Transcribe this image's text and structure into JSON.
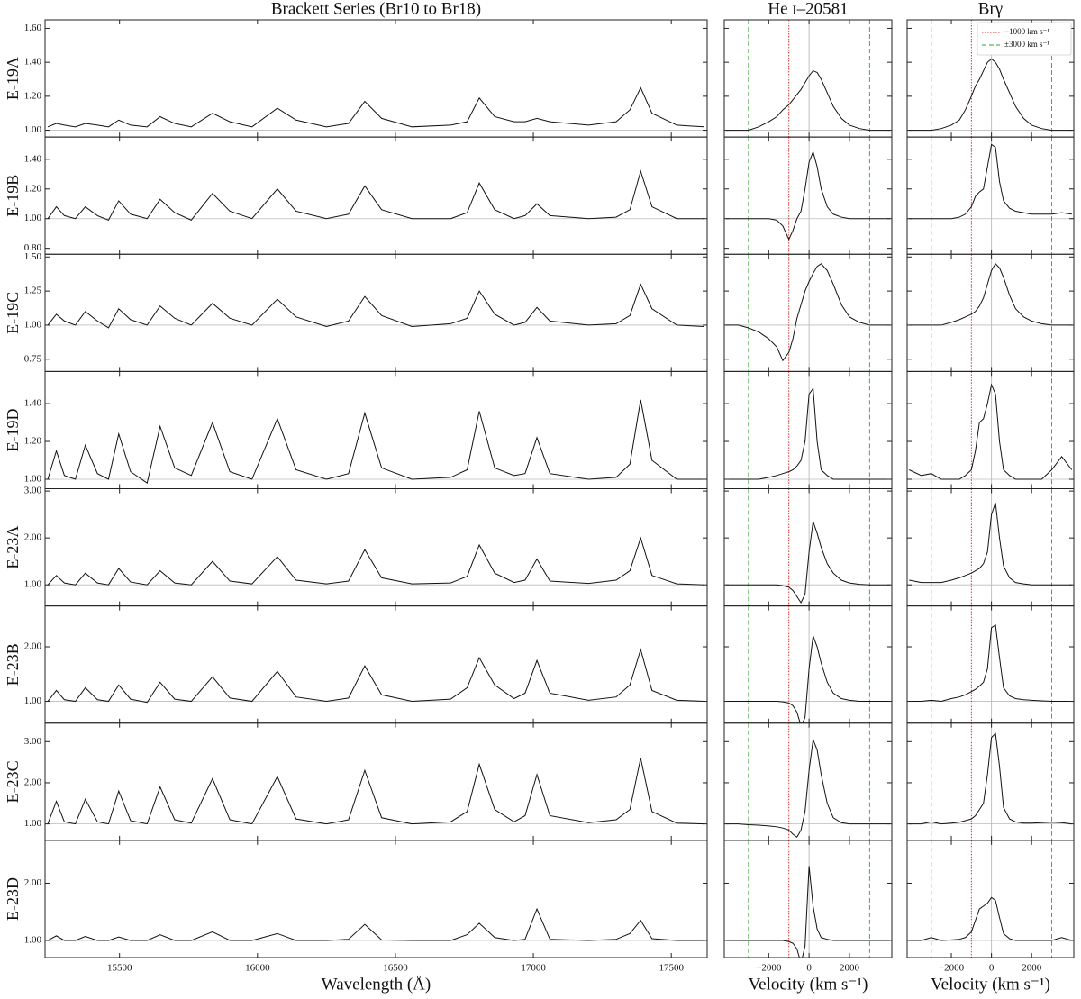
{
  "chart_data": {
    "type": "line",
    "line_color": "#111111",
    "continuum": {
      "value": 1,
      "color": "#bbbbbb"
    },
    "reference_lines": [
      {
        "label": "−1000 km s⁻¹",
        "color": "#e41a1c",
        "style": "dotted",
        "values": [
          -1000
        ],
        "columns": [
          1,
          2
        ]
      },
      {
        "label": "±3000 km s⁻¹",
        "color": "#33a02c",
        "style": "dashed",
        "values": [
          -3000,
          3000
        ],
        "columns": [
          1,
          2
        ]
      },
      {
        "color": "#bbbbbb",
        "style": "solid",
        "values": [
          0
        ],
        "columns": [
          1,
          2
        ]
      }
    ],
    "legend": {
      "corner": "upper right",
      "column": 2,
      "row": 0
    },
    "columns": [
      {
        "title": "Brackett Series (Br10 to Br18)",
        "xlabel": "Wavelength (Å)",
        "xlim": [
          15230,
          17630
        ],
        "xticks": [
          15500,
          16000,
          16500,
          17000,
          17500
        ],
        "x": [
          15240,
          15271,
          15300,
          15340,
          15376,
          15420,
          15460,
          15497,
          15540,
          15600,
          15647,
          15700,
          15760,
          15837,
          15900,
          15980,
          16072,
          16140,
          16250,
          16330,
          16389,
          16450,
          16560,
          16700,
          16760,
          16804,
          16860,
          16930,
          16970,
          17013,
          17060,
          17200,
          17300,
          17350,
          17389,
          17430,
          17520,
          17620
        ]
      },
      {
        "title": "He ɪ–20581",
        "xlabel": "Velocity (km s⁻¹)",
        "xlim": [
          -4200,
          4100
        ],
        "xticks": [
          {
            "value": -2000,
            "label": "−2000"
          },
          0,
          2000
        ],
        "x": [
          -4100,
          -3500,
          -3000,
          -2500,
          -2000,
          -1600,
          -1300,
          -1000,
          -800,
          -600,
          -400,
          -200,
          0,
          200,
          400,
          600,
          900,
          1200,
          1600,
          2000,
          2500,
          3000,
          3500,
          4000
        ]
      },
      {
        "title": "Brγ",
        "xlabel": "Velocity (km s⁻¹)",
        "xlim": [
          -4200,
          4100
        ],
        "xticks": [
          {
            "value": -2000,
            "label": "−2000"
          },
          0,
          2000
        ],
        "x": [
          -4100,
          -3500,
          -3000,
          -2500,
          -2000,
          -1600,
          -1300,
          -1000,
          -800,
          -600,
          -400,
          -200,
          0,
          200,
          400,
          600,
          900,
          1200,
          1600,
          2000,
          2500,
          3000,
          3500,
          4000
        ]
      }
    ],
    "rows": [
      {
        "label": "E-19A",
        "ylim": [
          0.96,
          1.65
        ],
        "yticks": [
          {
            "value": 1,
            "label": "1.00"
          },
          {
            "value": 1.2,
            "label": "1.20"
          },
          {
            "value": 1.4,
            "label": "1.40"
          },
          {
            "value": 1.6,
            "label": "1.60"
          }
        ],
        "values": [
          [
            1.02,
            1.04,
            1.03,
            1.02,
            1.04,
            1.03,
            1.02,
            1.06,
            1.03,
            1.02,
            1.08,
            1.04,
            1.02,
            1.1,
            1.05,
            1.02,
            1.13,
            1.06,
            1.02,
            1.04,
            1.17,
            1.07,
            1.02,
            1.03,
            1.05,
            1.19,
            1.08,
            1.05,
            1.05,
            1.07,
            1.05,
            1.03,
            1.05,
            1.12,
            1.25,
            1.1,
            1.03,
            1.02
          ],
          [
            1.0,
            1.0,
            1.0,
            1.02,
            1.05,
            1.08,
            1.12,
            1.15,
            1.18,
            1.21,
            1.24,
            1.28,
            1.32,
            1.35,
            1.34,
            1.3,
            1.22,
            1.14,
            1.07,
            1.03,
            1.01,
            1.0,
            1.0,
            1.0
          ],
          [
            1.0,
            1.0,
            1.0,
            1.01,
            1.03,
            1.06,
            1.12,
            1.2,
            1.26,
            1.3,
            1.35,
            1.4,
            1.42,
            1.4,
            1.36,
            1.3,
            1.22,
            1.14,
            1.07,
            1.03,
            1.01,
            1.0,
            1.0,
            1.0
          ]
        ]
      },
      {
        "label": "E-19B",
        "ylim": [
          0.76,
          1.55
        ],
        "yticks": [
          {
            "value": 0.8,
            "label": "0.80"
          },
          {
            "value": 1,
            "label": "1.00"
          },
          {
            "value": 1.2,
            "label": "1.20"
          },
          {
            "value": 1.4,
            "label": "1.40"
          }
        ],
        "values": [
          [
            1.0,
            1.08,
            1.02,
            1.0,
            1.08,
            1.02,
            0.99,
            1.12,
            1.03,
            1.0,
            1.13,
            1.04,
            0.99,
            1.17,
            1.05,
            1.0,
            1.2,
            1.05,
            1.0,
            1.03,
            1.22,
            1.06,
            1.0,
            1.0,
            1.04,
            1.24,
            1.06,
            1.0,
            1.02,
            1.1,
            1.02,
            1.0,
            1.01,
            1.06,
            1.32,
            1.08,
            1.0,
            1.0
          ],
          [
            1.0,
            1.0,
            1.0,
            1.0,
            1.0,
            0.99,
            0.95,
            0.86,
            0.92,
            1.0,
            1.05,
            1.2,
            1.38,
            1.45,
            1.35,
            1.2,
            1.08,
            1.03,
            1.01,
            1.0,
            1.0,
            1.0,
            1.0,
            1.0
          ],
          [
            1.0,
            1.0,
            1.0,
            1.0,
            1.0,
            1.01,
            1.03,
            1.08,
            1.15,
            1.18,
            1.2,
            1.35,
            1.5,
            1.48,
            1.25,
            1.12,
            1.07,
            1.05,
            1.04,
            1.03,
            1.03,
            1.03,
            1.04,
            1.03
          ]
        ]
      },
      {
        "label": "E-19C",
        "ylim": [
          0.66,
          1.52
        ],
        "yticks": [
          {
            "value": 0.75,
            "label": "0.75"
          },
          {
            "value": 1,
            "label": "1.00"
          },
          {
            "value": 1.25,
            "label": "1.25"
          },
          {
            "value": 1.5,
            "label": "1.50"
          }
        ],
        "values": [
          [
            1.0,
            1.08,
            1.03,
            1.0,
            1.1,
            1.03,
            0.98,
            1.12,
            1.04,
            1.0,
            1.14,
            1.05,
            1.0,
            1.16,
            1.05,
            1.0,
            1.19,
            1.06,
            0.99,
            1.03,
            1.21,
            1.07,
            0.99,
            1.01,
            1.05,
            1.25,
            1.08,
            1.0,
            1.02,
            1.13,
            1.03,
            1.0,
            1.01,
            1.07,
            1.3,
            1.12,
            1.0,
            0.99
          ],
          [
            1.0,
            1.0,
            0.98,
            0.95,
            0.9,
            0.84,
            0.74,
            0.8,
            0.9,
            1.05,
            1.15,
            1.25,
            1.32,
            1.38,
            1.43,
            1.45,
            1.4,
            1.3,
            1.15,
            1.06,
            1.02,
            1.0,
            1.0,
            1.0
          ],
          [
            1.0,
            1.0,
            1.0,
            1.0,
            1.02,
            1.04,
            1.06,
            1.08,
            1.1,
            1.14,
            1.2,
            1.3,
            1.4,
            1.45,
            1.42,
            1.35,
            1.22,
            1.12,
            1.06,
            1.03,
            1.01,
            1.0,
            1.0,
            1.0
          ]
        ]
      },
      {
        "label": "E-19D",
        "ylim": [
          0.95,
          1.57
        ],
        "yticks": [
          {
            "value": 1,
            "label": "1.00"
          },
          {
            "value": 1.2,
            "label": "1.20"
          },
          {
            "value": 1.4,
            "label": "1.40"
          }
        ],
        "values": [
          [
            1.0,
            1.15,
            1.02,
            1.0,
            1.18,
            1.03,
            1.0,
            1.24,
            1.04,
            0.98,
            1.28,
            1.06,
            1.02,
            1.3,
            1.04,
            1.0,
            1.32,
            1.05,
            1.0,
            1.03,
            1.35,
            1.06,
            1.0,
            1.01,
            1.05,
            1.36,
            1.06,
            1.02,
            1.03,
            1.22,
            1.03,
            1.0,
            1.01,
            1.08,
            1.42,
            1.1,
            1.0,
            1.0
          ],
          [
            1.0,
            1.0,
            1.0,
            1.0,
            1.01,
            1.02,
            1.03,
            1.04,
            1.05,
            1.07,
            1.1,
            1.2,
            1.45,
            1.48,
            1.2,
            1.05,
            1.02,
            1.0,
            1.0,
            1.0,
            1.0,
            1.0,
            1.0,
            1.0
          ],
          [
            1.05,
            1.02,
            1.03,
            1.0,
            1.0,
            1.0,
            1.02,
            1.05,
            1.15,
            1.3,
            1.32,
            1.4,
            1.5,
            1.45,
            1.2,
            1.05,
            1.02,
            1.0,
            1.0,
            1.0,
            1.0,
            1.05,
            1.12,
            1.05
          ]
        ]
      },
      {
        "label": "E-23A",
        "ylim": [
          0.55,
          3.05
        ],
        "yticks": [
          {
            "value": 1,
            "label": "1.00"
          },
          {
            "value": 2,
            "label": "2.00"
          },
          {
            "value": 3,
            "label": "3.00"
          }
        ],
        "values": [
          [
            1.0,
            1.2,
            1.04,
            1.0,
            1.25,
            1.04,
            1.0,
            1.35,
            1.06,
            1.0,
            1.3,
            1.04,
            1.0,
            1.5,
            1.08,
            1.02,
            1.6,
            1.1,
            1.02,
            1.08,
            1.75,
            1.15,
            1.02,
            1.04,
            1.18,
            1.85,
            1.25,
            1.05,
            1.1,
            1.55,
            1.08,
            1.03,
            1.1,
            1.3,
            2.0,
            1.2,
            1.02,
            1.0
          ],
          [
            1.0,
            1.0,
            1.0,
            1.0,
            1.0,
            1.0,
            0.98,
            0.95,
            0.88,
            0.75,
            0.62,
            0.8,
            1.7,
            2.35,
            2.1,
            1.8,
            1.45,
            1.25,
            1.1,
            1.04,
            1.01,
            1.0,
            1.0,
            1.0
          ],
          [
            1.1,
            1.05,
            1.05,
            1.05,
            1.1,
            1.15,
            1.2,
            1.25,
            1.3,
            1.35,
            1.45,
            1.7,
            2.5,
            2.75,
            2.0,
            1.4,
            1.15,
            1.05,
            1.02,
            1.0,
            1.0,
            1.0,
            1.0,
            1.0
          ]
        ]
      },
      {
        "label": "E-23B",
        "ylim": [
          0.6,
          2.75
        ],
        "yticks": [
          {
            "value": 1,
            "label": "1.00"
          },
          {
            "value": 2,
            "label": "2.00"
          }
        ],
        "values": [
          [
            1.0,
            1.2,
            1.03,
            1.0,
            1.25,
            1.03,
            1.0,
            1.3,
            1.04,
            0.98,
            1.35,
            1.04,
            1.0,
            1.45,
            1.06,
            1.0,
            1.55,
            1.08,
            1.0,
            1.06,
            1.65,
            1.12,
            1.0,
            1.04,
            1.25,
            1.8,
            1.3,
            1.05,
            1.15,
            1.75,
            1.15,
            1.02,
            1.08,
            1.3,
            1.95,
            1.2,
            1.02,
            1.0
          ],
          [
            1.0,
            1.0,
            1.0,
            1.0,
            1.0,
            1.0,
            0.99,
            0.97,
            0.92,
            0.8,
            0.55,
            0.7,
            1.6,
            2.2,
            2.0,
            1.7,
            1.35,
            1.15,
            1.05,
            1.02,
            1.0,
            1.0,
            1.0,
            1.0
          ],
          [
            1.0,
            1.0,
            1.02,
            1.0,
            1.05,
            1.08,
            1.12,
            1.18,
            1.22,
            1.28,
            1.35,
            1.6,
            2.35,
            2.4,
            1.8,
            1.25,
            1.1,
            1.05,
            1.03,
            1.02,
            1.01,
            1.0,
            1.0,
            1.0
          ]
        ]
      },
      {
        "label": "E-23C",
        "ylim": [
          0.6,
          3.45
        ],
        "yticks": [
          {
            "value": 1,
            "label": "1.00"
          },
          {
            "value": 2,
            "label": "2.00"
          },
          {
            "value": 3,
            "label": "3.00"
          }
        ],
        "values": [
          [
            1.0,
            1.55,
            1.05,
            1.0,
            1.6,
            1.05,
            1.0,
            1.8,
            1.08,
            1.0,
            1.9,
            1.1,
            1.02,
            2.1,
            1.1,
            1.0,
            2.15,
            1.12,
            1.0,
            1.1,
            2.3,
            1.15,
            1.0,
            1.05,
            1.3,
            2.45,
            1.35,
            1.05,
            1.2,
            2.2,
            1.2,
            1.03,
            1.1,
            1.35,
            2.6,
            1.3,
            1.02,
            1.0
          ],
          [
            1.0,
            1.0,
            0.98,
            0.97,
            0.95,
            0.93,
            0.9,
            0.85,
            0.75,
            0.68,
            0.85,
            1.3,
            2.3,
            3.05,
            2.8,
            2.2,
            1.5,
            1.15,
            1.03,
            1.0,
            1.0,
            1.0,
            1.0,
            1.0
          ],
          [
            1.0,
            1.0,
            1.05,
            1.0,
            1.02,
            1.04,
            1.08,
            1.12,
            1.2,
            1.35,
            1.5,
            2.2,
            3.1,
            3.2,
            2.4,
            1.4,
            1.12,
            1.05,
            1.02,
            1.02,
            1.03,
            1.04,
            1.03,
            1.0
          ]
        ]
      },
      {
        "label": "E-23D",
        "ylim": [
          0.7,
          2.75
        ],
        "yticks": [
          {
            "value": 1,
            "label": "1.00"
          },
          {
            "value": 2,
            "label": "2.00"
          }
        ],
        "values": [
          [
            1.0,
            1.08,
            1.0,
            1.0,
            1.07,
            1.0,
            1.0,
            1.06,
            1.0,
            1.0,
            1.1,
            1.0,
            1.0,
            1.15,
            1.0,
            1.0,
            1.12,
            1.0,
            1.0,
            1.02,
            1.28,
            1.01,
            1.0,
            1.0,
            1.1,
            1.3,
            1.05,
            1.0,
            1.02,
            1.55,
            1.02,
            1.0,
            1.02,
            1.12,
            1.35,
            1.03,
            1.0,
            1.0
          ],
          [
            1.0,
            1.0,
            1.0,
            1.0,
            1.0,
            1.0,
            1.0,
            0.98,
            0.95,
            0.85,
            0.6,
            0.9,
            2.3,
            1.6,
            1.2,
            1.05,
            1.02,
            1.0,
            1.0,
            1.0,
            1.0,
            1.0,
            1.0,
            1.0
          ],
          [
            1.0,
            1.0,
            1.05,
            1.0,
            1.01,
            1.02,
            1.05,
            1.15,
            1.35,
            1.55,
            1.6,
            1.65,
            1.75,
            1.7,
            1.4,
            1.12,
            1.03,
            1.0,
            1.0,
            1.0,
            1.0,
            1.0,
            1.05,
            1.0
          ]
        ]
      }
    ]
  }
}
